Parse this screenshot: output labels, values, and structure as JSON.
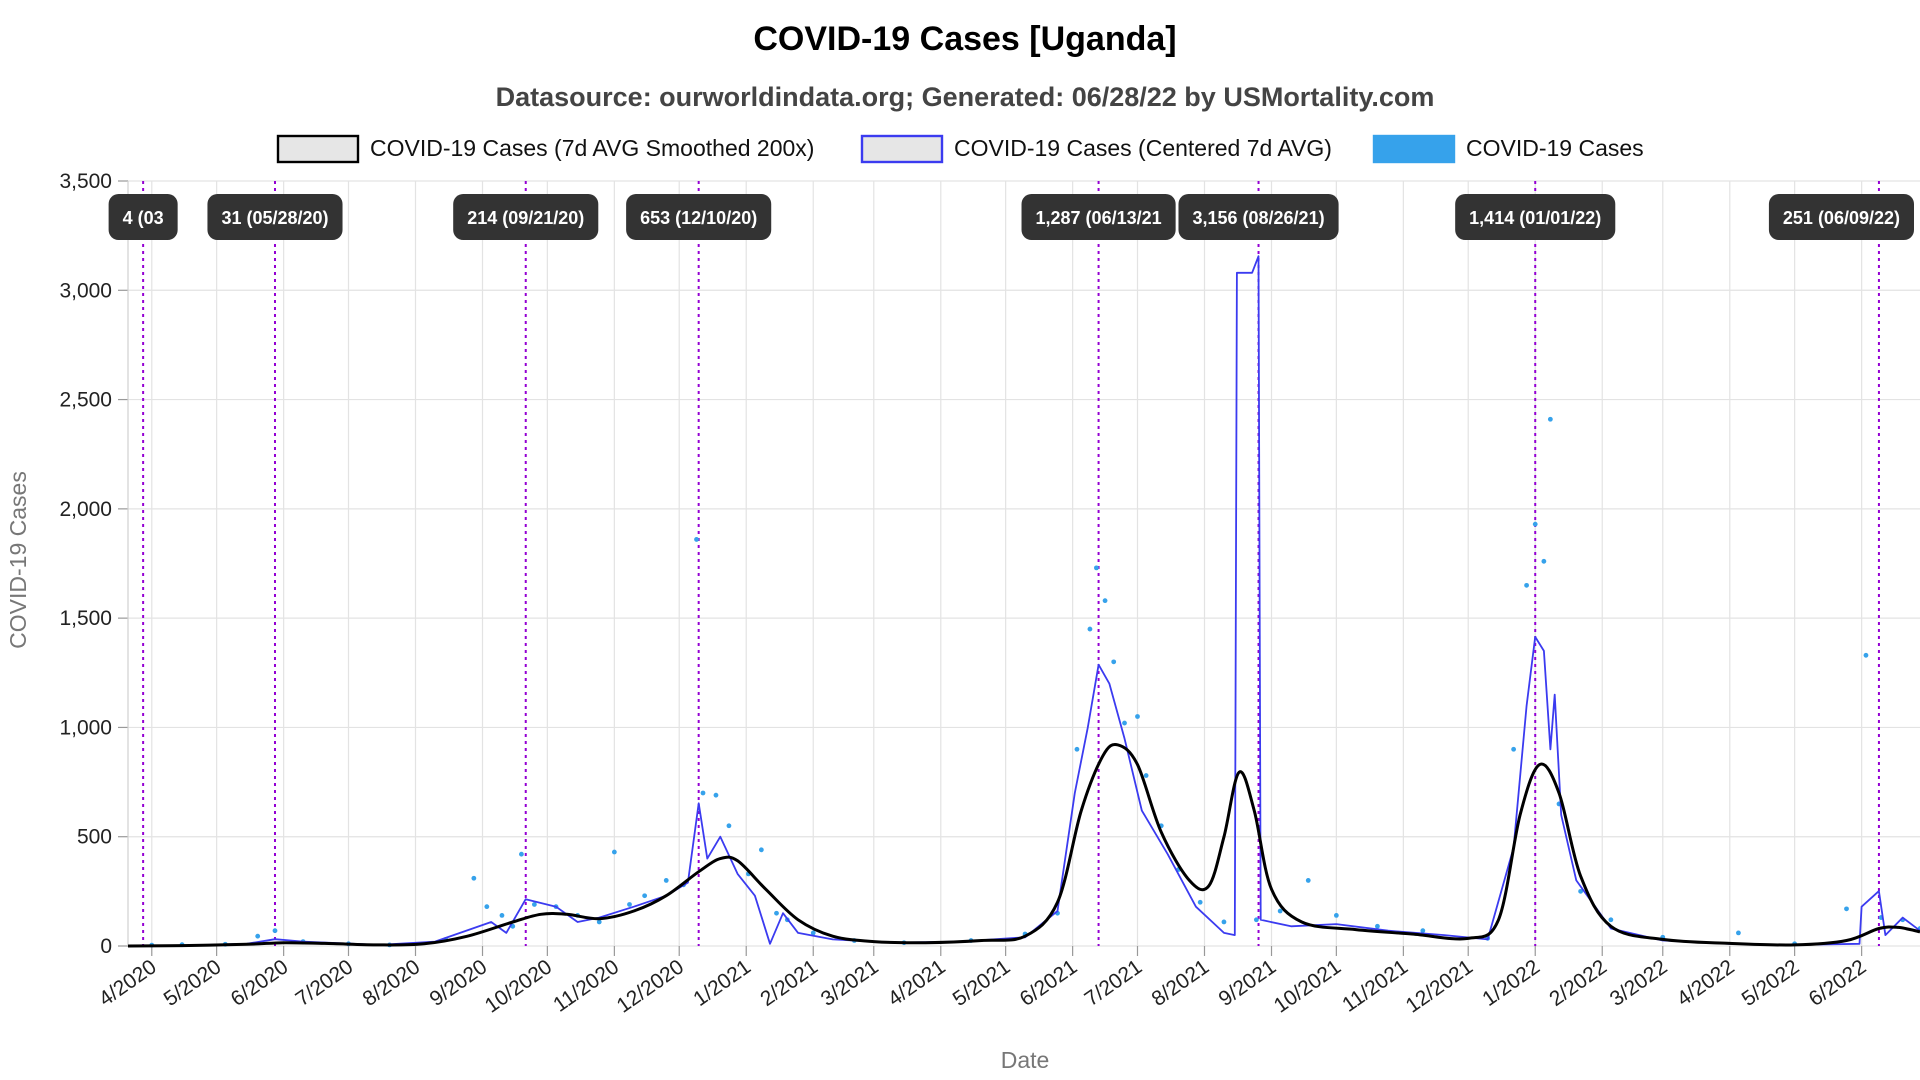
{
  "chart_data": {
    "type": "line",
    "title": "COVID-19 Cases [Uganda]",
    "subtitle": "Datasource: ourworldindata.org; Generated: 06/28/22 by USMortality.com",
    "xlabel": "Date",
    "ylabel": "COVID-19 Cases",
    "ylim": [
      0,
      3500
    ],
    "xlim": [
      "2020-03-21",
      "2022-06-28"
    ],
    "grid": true,
    "legend_position": "top",
    "y_ticks": [
      0,
      500,
      1000,
      1500,
      2000,
      2500,
      3000,
      3500
    ],
    "y_tick_labels": [
      "0",
      "500",
      "1,000",
      "1,500",
      "2,000",
      "2,500",
      "3,000",
      "3,500"
    ],
    "x_ticks": [
      "2020-04-01",
      "2020-05-01",
      "2020-06-01",
      "2020-07-01",
      "2020-08-01",
      "2020-09-01",
      "2020-10-01",
      "2020-11-01",
      "2020-12-01",
      "2021-01-01",
      "2021-02-01",
      "2021-03-01",
      "2021-04-01",
      "2021-05-01",
      "2021-06-01",
      "2021-07-01",
      "2021-08-01",
      "2021-09-01",
      "2021-10-01",
      "2021-11-01",
      "2021-12-01",
      "2022-01-01",
      "2022-02-01",
      "2022-03-01",
      "2022-04-01",
      "2022-05-01",
      "2022-06-01"
    ],
    "x_tick_labels": [
      "4/2020",
      "5/2020",
      "6/2020",
      "7/2020",
      "8/2020",
      "9/2020",
      "10/2020",
      "11/2020",
      "12/2020",
      "1/2021",
      "2/2021",
      "3/2021",
      "4/2021",
      "5/2021",
      "6/2021",
      "7/2021",
      "8/2021",
      "9/2021",
      "10/2021",
      "11/2021",
      "12/2021",
      "1/2022",
      "2/2022",
      "3/2022",
      "4/2022",
      "5/2022",
      "6/2022"
    ],
    "legend": [
      {
        "label": "COVID-19 Cases (7d AVG Smoothed 200x)",
        "stroke": "#000000",
        "fill": "#e6e6e6"
      },
      {
        "label": "COVID-19 Cases (Centered 7d AVG)",
        "stroke": "#3b3bf0",
        "fill": "#e6e6e6"
      },
      {
        "label": "COVID-19 Cases",
        "stroke": "#36a2eb",
        "fill": "#36a2eb"
      }
    ],
    "colors": {
      "smoothed": "#000000",
      "centered": "#3b3bf0",
      "daily": "#36a2eb",
      "annotation_line": "#9400d3",
      "annotation_box": "#333333",
      "grid": "#e3e3e3"
    },
    "series": [
      {
        "name": "COVID-19 Cases (7d AVG Smoothed 200x)",
        "points": [
          [
            "2020-03-21",
            0
          ],
          [
            "2020-04-15",
            2
          ],
          [
            "2020-05-15",
            8
          ],
          [
            "2020-06-01",
            15
          ],
          [
            "2020-06-20",
            12
          ],
          [
            "2020-07-15",
            5
          ],
          [
            "2020-08-05",
            10
          ],
          [
            "2020-08-25",
            45
          ],
          [
            "2020-09-15",
            110
          ],
          [
            "2020-09-28",
            145
          ],
          [
            "2020-10-10",
            145
          ],
          [
            "2020-10-25",
            125
          ],
          [
            "2020-11-10",
            160
          ],
          [
            "2020-11-25",
            230
          ],
          [
            "2020-12-10",
            340
          ],
          [
            "2020-12-20",
            400
          ],
          [
            "2020-12-28",
            390
          ],
          [
            "2021-01-10",
            260
          ],
          [
            "2021-01-25",
            120
          ],
          [
            "2021-02-10",
            45
          ],
          [
            "2021-03-01",
            20
          ],
          [
            "2021-03-25",
            15
          ],
          [
            "2021-04-20",
            25
          ],
          [
            "2021-05-10",
            45
          ],
          [
            "2021-05-25",
            200
          ],
          [
            "2021-06-05",
            620
          ],
          [
            "2021-06-15",
            870
          ],
          [
            "2021-06-22",
            920
          ],
          [
            "2021-07-01",
            830
          ],
          [
            "2021-07-12",
            520
          ],
          [
            "2021-07-25",
            300
          ],
          [
            "2021-08-03",
            275
          ],
          [
            "2021-08-10",
            500
          ],
          [
            "2021-08-17",
            795
          ],
          [
            "2021-08-24",
            620
          ],
          [
            "2021-09-01",
            260
          ],
          [
            "2021-09-15",
            110
          ],
          [
            "2021-10-10",
            75
          ],
          [
            "2021-11-05",
            55
          ],
          [
            "2021-12-01",
            35
          ],
          [
            "2021-12-15",
            120
          ],
          [
            "2021-12-25",
            600
          ],
          [
            "2022-01-03",
            830
          ],
          [
            "2022-01-12",
            700
          ],
          [
            "2022-01-22",
            320
          ],
          [
            "2022-02-05",
            90
          ],
          [
            "2022-03-01",
            30
          ],
          [
            "2022-04-01",
            12
          ],
          [
            "2022-05-01",
            5
          ],
          [
            "2022-05-25",
            25
          ],
          [
            "2022-06-09",
            80
          ],
          [
            "2022-06-18",
            85
          ],
          [
            "2022-06-28",
            65
          ]
        ]
      },
      {
        "name": "COVID-19 Cases (Centered 7d AVG)",
        "points": [
          [
            "2020-03-21",
            0
          ],
          [
            "2020-04-15",
            2
          ],
          [
            "2020-05-15",
            10
          ],
          [
            "2020-05-28",
            31
          ],
          [
            "2020-06-10",
            20
          ],
          [
            "2020-07-15",
            5
          ],
          [
            "2020-08-10",
            20
          ],
          [
            "2020-09-05",
            110
          ],
          [
            "2020-09-12",
            60
          ],
          [
            "2020-09-21",
            214
          ],
          [
            "2020-10-05",
            180
          ],
          [
            "2020-10-15",
            110
          ],
          [
            "2020-10-25",
            130
          ],
          [
            "2020-11-10",
            180
          ],
          [
            "2020-11-25",
            230
          ],
          [
            "2020-12-05",
            290
          ],
          [
            "2020-12-10",
            653
          ],
          [
            "2020-12-14",
            400
          ],
          [
            "2020-12-20",
            500
          ],
          [
            "2020-12-28",
            330
          ],
          [
            "2021-01-05",
            230
          ],
          [
            "2021-01-12",
            10
          ],
          [
            "2021-01-18",
            150
          ],
          [
            "2021-01-25",
            60
          ],
          [
            "2021-02-10",
            30
          ],
          [
            "2021-03-10",
            15
          ],
          [
            "2021-04-10",
            20
          ],
          [
            "2021-05-10",
            40
          ],
          [
            "2021-05-25",
            160
          ],
          [
            "2021-06-02",
            700
          ],
          [
            "2021-06-08",
            1000
          ],
          [
            "2021-06-13",
            1287
          ],
          [
            "2021-06-18",
            1200
          ],
          [
            "2021-06-25",
            950
          ],
          [
            "2021-07-03",
            620
          ],
          [
            "2021-07-15",
            420
          ],
          [
            "2021-07-28",
            180
          ],
          [
            "2021-08-10",
            60
          ],
          [
            "2021-08-15",
            50
          ],
          [
            "2021-08-16",
            3080
          ],
          [
            "2021-08-23",
            3080
          ],
          [
            "2021-08-26",
            3156
          ],
          [
            "2021-08-27",
            120
          ],
          [
            "2021-09-10",
            90
          ],
          [
            "2021-10-01",
            100
          ],
          [
            "2021-10-25",
            70
          ],
          [
            "2021-11-20",
            50
          ],
          [
            "2021-12-10",
            30
          ],
          [
            "2021-12-22",
            450
          ],
          [
            "2021-12-28",
            1100
          ],
          [
            "2022-01-01",
            1414
          ],
          [
            "2022-01-05",
            1350
          ],
          [
            "2022-01-08",
            900
          ],
          [
            "2022-01-10",
            1150
          ],
          [
            "2022-01-13",
            600
          ],
          [
            "2022-01-20",
            300
          ],
          [
            "2022-02-05",
            80
          ],
          [
            "2022-03-01",
            25
          ],
          [
            "2022-04-01",
            10
          ],
          [
            "2022-05-01",
            5
          ],
          [
            "2022-05-31",
            10
          ],
          [
            "2022-06-01",
            180
          ],
          [
            "2022-06-09",
            251
          ],
          [
            "2022-06-12",
            50
          ],
          [
            "2022-06-20",
            130
          ],
          [
            "2022-06-28",
            70
          ]
        ]
      },
      {
        "name": "COVID-19 Cases",
        "points": [
          [
            "2020-04-01",
            4
          ],
          [
            "2020-04-15",
            6
          ],
          [
            "2020-05-05",
            8
          ],
          [
            "2020-05-20",
            45
          ],
          [
            "2020-05-28",
            70
          ],
          [
            "2020-06-10",
            20
          ],
          [
            "2020-07-01",
            10
          ],
          [
            "2020-07-20",
            5
          ],
          [
            "2020-08-15",
            30
          ],
          [
            "2020-08-28",
            310
          ],
          [
            "2020-09-03",
            180
          ],
          [
            "2020-09-10",
            140
          ],
          [
            "2020-09-15",
            90
          ],
          [
            "2020-09-19",
            420
          ],
          [
            "2020-09-25",
            190
          ],
          [
            "2020-10-05",
            180
          ],
          [
            "2020-10-15",
            140
          ],
          [
            "2020-10-25",
            110
          ],
          [
            "2020-11-01",
            430
          ],
          [
            "2020-11-08",
            190
          ],
          [
            "2020-11-15",
            230
          ],
          [
            "2020-11-25",
            300
          ],
          [
            "2020-12-03",
            280
          ],
          [
            "2020-12-09",
            1860
          ],
          [
            "2020-12-12",
            700
          ],
          [
            "2020-12-18",
            690
          ],
          [
            "2020-12-24",
            550
          ],
          [
            "2021-01-02",
            330
          ],
          [
            "2021-01-08",
            440
          ],
          [
            "2021-01-15",
            150
          ],
          [
            "2021-01-20",
            120
          ],
          [
            "2021-02-01",
            60
          ],
          [
            "2021-02-20",
            25
          ],
          [
            "2021-03-15",
            15
          ],
          [
            "2021-04-15",
            25
          ],
          [
            "2021-05-10",
            55
          ],
          [
            "2021-05-25",
            150
          ],
          [
            "2021-06-03",
            900
          ],
          [
            "2021-06-09",
            1450
          ],
          [
            "2021-06-12",
            1730
          ],
          [
            "2021-06-16",
            1580
          ],
          [
            "2021-06-20",
            1300
          ],
          [
            "2021-06-25",
            1020
          ],
          [
            "2021-07-01",
            1050
          ],
          [
            "2021-07-05",
            780
          ],
          [
            "2021-07-12",
            550
          ],
          [
            "2021-07-20",
            350
          ],
          [
            "2021-07-30",
            200
          ],
          [
            "2021-08-10",
            110
          ],
          [
            "2021-08-25",
            120
          ],
          [
            "2021-09-05",
            160
          ],
          [
            "2021-09-18",
            300
          ],
          [
            "2021-10-01",
            140
          ],
          [
            "2021-10-20",
            90
          ],
          [
            "2021-11-10",
            70
          ],
          [
            "2021-12-10",
            35
          ],
          [
            "2021-12-22",
            900
          ],
          [
            "2021-12-28",
            1650
          ],
          [
            "2022-01-01",
            1930
          ],
          [
            "2022-01-05",
            1760
          ],
          [
            "2022-01-08",
            2410
          ],
          [
            "2022-01-12",
            650
          ],
          [
            "2022-01-22",
            250
          ],
          [
            "2022-02-05",
            120
          ],
          [
            "2022-03-01",
            40
          ],
          [
            "2022-04-05",
            60
          ],
          [
            "2022-05-01",
            10
          ],
          [
            "2022-05-25",
            170
          ],
          [
            "2022-06-03",
            1330
          ],
          [
            "2022-06-10",
            130
          ],
          [
            "2022-06-20",
            120
          ],
          [
            "2022-06-28",
            80
          ]
        ]
      }
    ],
    "annotations": [
      {
        "date": "2020-03-28",
        "label": "4 (03"
      },
      {
        "date": "2020-05-28",
        "label": "31 (05/28/20)"
      },
      {
        "date": "2020-09-21",
        "label": "214 (09/21/20)"
      },
      {
        "date": "2020-12-10",
        "label": "653 (12/10/20)"
      },
      {
        "date": "2021-06-13",
        "label": "1,287 (06/13/21"
      },
      {
        "date": "2021-08-26",
        "label": "3,156 (08/26/21)"
      },
      {
        "date": "2022-01-01",
        "label": "1,414 (01/01/22)"
      },
      {
        "date": "2022-06-09",
        "label": "251 (06/09/22)"
      }
    ]
  }
}
